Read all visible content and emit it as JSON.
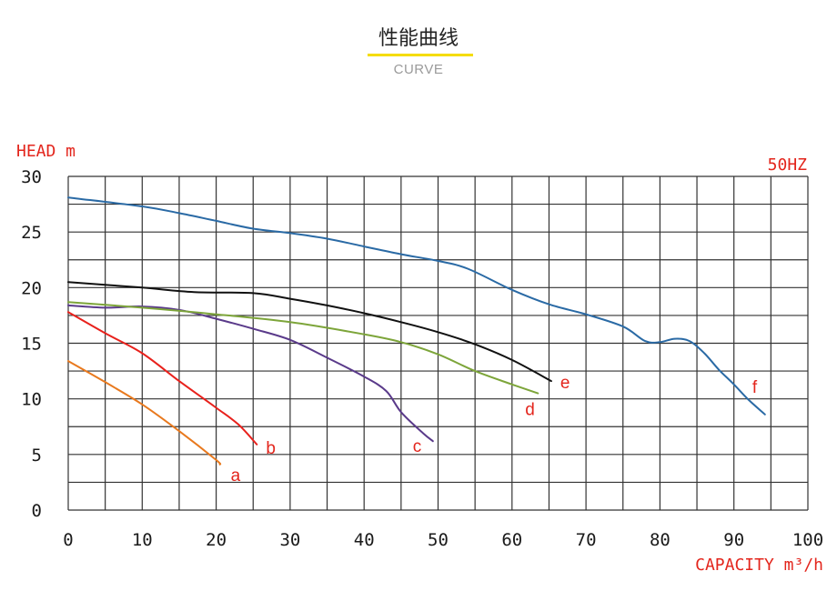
{
  "header": {
    "title": "性能曲线",
    "subtitle": "CURVE"
  },
  "colors": {
    "accent_underline": "#f5dc00",
    "label_red": "#e3251c",
    "grid": "#333333"
  },
  "chart_data": {
    "type": "line",
    "ylabel": "HEAD m",
    "xlabel": "CAPACITY m³/h",
    "frequency_label": "50HZ",
    "xlim": [
      0,
      100
    ],
    "ylim": [
      0,
      30
    ],
    "x_major_ticks": [
      0,
      10,
      20,
      30,
      40,
      50,
      60,
      70,
      80,
      90,
      100
    ],
    "y_major_ticks": [
      0,
      5,
      10,
      15,
      20,
      25,
      30
    ],
    "x_grid_step": 5,
    "y_grid_step": 2.5,
    "grid": true,
    "series": [
      {
        "name": "a",
        "color": "#e8791e",
        "points": [
          [
            0,
            13.4
          ],
          [
            5,
            11.5
          ],
          [
            10,
            9.5
          ],
          [
            15,
            7.1
          ],
          [
            20,
            4.5
          ],
          [
            20.5,
            4.1
          ]
        ]
      },
      {
        "name": "b",
        "color": "#e8211c",
        "points": [
          [
            0,
            17.8
          ],
          [
            5,
            15.9
          ],
          [
            10,
            14.1
          ],
          [
            15,
            11.6
          ],
          [
            20,
            9.2
          ],
          [
            23,
            7.7
          ],
          [
            25.5,
            5.9
          ]
        ]
      },
      {
        "name": "c",
        "color": "#5a3a8a",
        "points": [
          [
            0,
            18.4
          ],
          [
            5,
            18.2
          ],
          [
            10,
            18.3
          ],
          [
            15,
            18.0
          ],
          [
            20,
            17.2
          ],
          [
            25,
            16.3
          ],
          [
            30,
            15.3
          ],
          [
            35,
            13.7
          ],
          [
            40,
            12.0
          ],
          [
            43,
            10.7
          ],
          [
            45,
            8.8
          ],
          [
            48,
            6.9
          ],
          [
            49.3,
            6.2
          ]
        ]
      },
      {
        "name": "d",
        "color": "#7da53a",
        "points": [
          [
            0,
            18.7
          ],
          [
            10,
            18.2
          ],
          [
            20,
            17.6
          ],
          [
            30,
            16.9
          ],
          [
            40,
            15.8
          ],
          [
            45,
            15.1
          ],
          [
            50,
            14.0
          ],
          [
            55,
            12.5
          ],
          [
            60,
            11.3
          ],
          [
            63.5,
            10.5
          ]
        ]
      },
      {
        "name": "e",
        "color": "#111111",
        "points": [
          [
            0,
            20.5
          ],
          [
            10,
            20.0
          ],
          [
            17,
            19.6
          ],
          [
            25,
            19.5
          ],
          [
            30,
            19.0
          ],
          [
            35,
            18.4
          ],
          [
            40,
            17.7
          ],
          [
            45,
            16.9
          ],
          [
            50,
            16.0
          ],
          [
            55,
            14.9
          ],
          [
            60,
            13.5
          ],
          [
            65.3,
            11.6
          ]
        ]
      },
      {
        "name": "f",
        "color": "#2a6aa5",
        "points": [
          [
            0,
            28.1
          ],
          [
            10,
            27.3
          ],
          [
            15,
            26.7
          ],
          [
            20,
            26.0
          ],
          [
            25,
            25.3
          ],
          [
            30,
            24.9
          ],
          [
            35,
            24.4
          ],
          [
            40,
            23.7
          ],
          [
            45,
            23.0
          ],
          [
            50,
            22.4
          ],
          [
            54,
            21.7
          ],
          [
            60,
            19.8
          ],
          [
            65,
            18.5
          ],
          [
            70,
            17.6
          ],
          [
            75,
            16.5
          ],
          [
            78,
            15.2
          ],
          [
            80,
            15.1
          ],
          [
            82,
            15.4
          ],
          [
            84,
            15.2
          ],
          [
            86,
            14.1
          ],
          [
            88,
            12.6
          ],
          [
            90,
            11.3
          ],
          [
            92,
            9.9
          ],
          [
            94.2,
            8.6
          ]
        ]
      }
    ]
  }
}
